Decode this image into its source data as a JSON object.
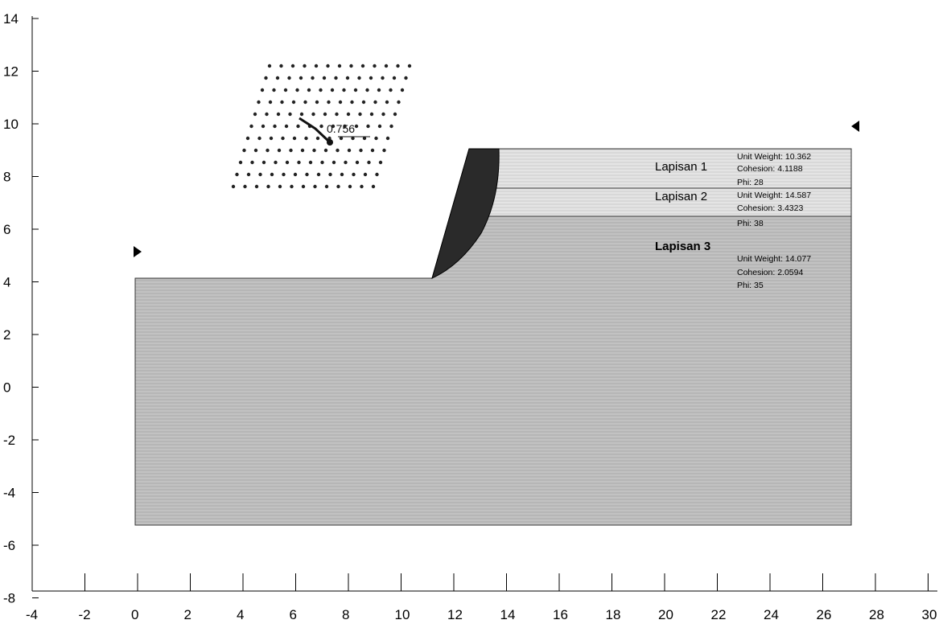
{
  "x_axis": {
    "ticks": [
      "-4",
      "-2",
      "0",
      "2",
      "4",
      "6",
      "8",
      "10",
      "12",
      "14",
      "16",
      "18",
      "20",
      "22",
      "24",
      "26",
      "28",
      "30"
    ]
  },
  "y_axis": {
    "ticks": [
      "14",
      "12",
      "10",
      "8",
      "6",
      "4",
      "2",
      "0",
      "-2",
      "-4",
      "-6",
      "-8"
    ]
  },
  "min_factor_of_safety": "0.756",
  "layers": [
    {
      "name": "Lapisan 1",
      "unit_weight": "Unit Weight: 10.362",
      "cohesion": "Cohesion: 4.1188",
      "phi": "Phi: 28"
    },
    {
      "name": "Lapisan 2",
      "unit_weight": "Unit Weight: 14.587",
      "cohesion": "Cohesion: 3.4323",
      "phi": "Phi: 38"
    },
    {
      "name": "Lapisan 3",
      "unit_weight": "Unit Weight: 14.077",
      "cohesion": "Cohesion: 2.0594",
      "phi": "Phi: 35"
    }
  ],
  "colors": {
    "soil": "#bdbdbd",
    "failure_zone": "#2a2a2a",
    "grid_dots": "#222222",
    "axis": "#000000"
  }
}
